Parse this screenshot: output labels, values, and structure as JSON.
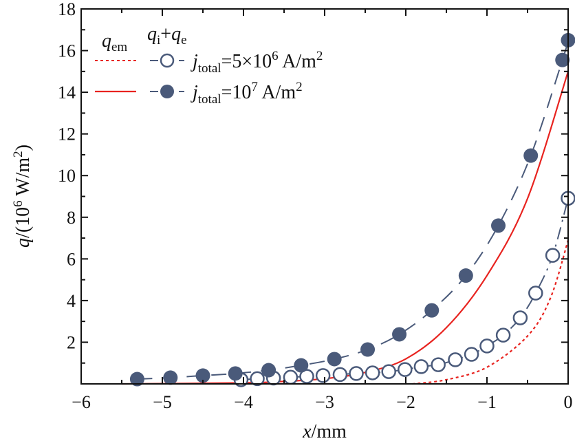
{
  "chart_data": {
    "type": "line",
    "xlabel": {
      "var": "x",
      "unit": "/mm"
    },
    "ylabel": {
      "var": "q",
      "prefix": "/(10",
      "exp": "6",
      "unit": " W/m",
      "unit_exp": "2",
      "suffix": ")"
    },
    "xlim": [
      -6,
      0
    ],
    "ylim": [
      0,
      18
    ],
    "xticks": [
      -6,
      -5,
      -4,
      -3,
      -2,
      -1,
      0
    ],
    "xtick_labels": [
      "−6",
      "−5",
      "−4",
      "−3",
      "−2",
      "−1",
      "0"
    ],
    "yticks": [
      2,
      4,
      6,
      8,
      10,
      12,
      14,
      16,
      18
    ],
    "ytick_labels": [
      "2",
      "4",
      "6",
      "8",
      "10",
      "12",
      "14",
      "16",
      "18"
    ],
    "grid": false,
    "legend": {
      "placement": "top-left",
      "col1_header": {
        "var": "q",
        "sub": "em"
      },
      "col2_header": {
        "var1": "q",
        "sub1": "i",
        "plus": "+",
        "var2": "q",
        "sub2": "e"
      },
      "rows": [
        {
          "j": "j",
          "sub": "total",
          "eq": "=5×10",
          "exp": "6",
          "unit": " A/m",
          "unit_exp": "2"
        },
        {
          "j": "j",
          "sub": "total",
          "eq": "=10",
          "exp": "7",
          "unit": " A/m",
          "unit_exp": "2"
        }
      ]
    },
    "colors": {
      "qem": "#e8231f",
      "qiqe": "#4a5a7a"
    },
    "series": [
      {
        "group": "q_em",
        "current": "5e6",
        "style": "dotted",
        "color": "#e8231f",
        "x": [
          -1.92,
          -1.5,
          -1.0,
          -0.5,
          -0.22,
          0
        ],
        "y": [
          0,
          0.2,
          0.8,
          2.3,
          4.1,
          6.9
        ]
      },
      {
        "group": "q_em",
        "current": "1e7",
        "style": "solid",
        "color": "#e8231f",
        "x": [
          -5.5,
          -4,
          -3.5,
          -3,
          -2.5,
          -2,
          -1.5,
          -1,
          -0.5,
          0
        ],
        "y": [
          0,
          0.05,
          0.12,
          0.25,
          0.55,
          1.2,
          2.7,
          5.2,
          8.9,
          15.0
        ]
      },
      {
        "group": "q_i+q_e",
        "current": "5e6",
        "style": "dash-dot",
        "marker": "open-circle",
        "color": "#4a5a7a",
        "x": [
          -4.03,
          -3.83,
          -3.63,
          -3.42,
          -3.22,
          -3.02,
          -2.81,
          -2.61,
          -2.41,
          -2.21,
          -2.01,
          -1.81,
          -1.6,
          -1.39,
          -1.19,
          -1.0,
          -0.8,
          -0.59,
          -0.4,
          -0.19,
          0
        ],
        "y": [
          0.2,
          0.25,
          0.28,
          0.32,
          0.36,
          0.4,
          0.45,
          0.5,
          0.53,
          0.59,
          0.69,
          0.83,
          0.92,
          1.16,
          1.42,
          1.82,
          2.34,
          3.17,
          4.36,
          6.17,
          8.91
        ]
      },
      {
        "group": "q_i+q_e",
        "current": "1e7",
        "style": "dashed",
        "marker": "filled-circle",
        "color": "#4a5a7a",
        "x": [
          -5.31,
          -4.9,
          -4.5,
          -4.1,
          -3.69,
          -3.29,
          -2.88,
          -2.47,
          -2.08,
          -1.68,
          -1.26,
          -0.86,
          -0.46,
          -0.07,
          0
        ],
        "y": [
          0.23,
          0.3,
          0.4,
          0.5,
          0.66,
          0.89,
          1.19,
          1.65,
          2.38,
          3.53,
          5.2,
          7.6,
          10.96,
          15.55,
          16.5
        ]
      }
    ]
  }
}
